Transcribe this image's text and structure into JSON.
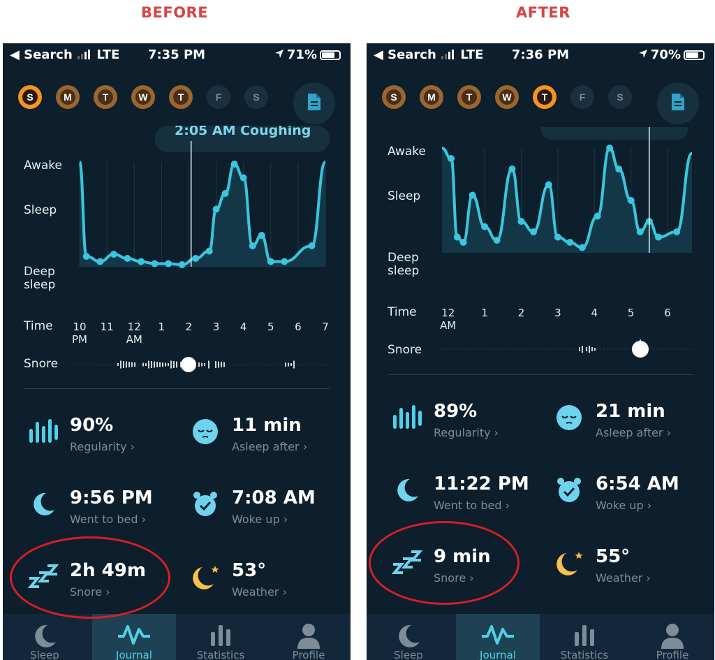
{
  "captions": {
    "before": "BEFORE",
    "after": "AFTER"
  },
  "colors": {
    "caption": "#d94343",
    "accent": "#4fd0e6",
    "orange": "#f7931e",
    "highlight_oval": "#d61e24"
  },
  "before": {
    "status": {
      "back": "◀ Search",
      "carrier": "LTE",
      "time": "7:35 PM",
      "battery": "71%"
    },
    "days": [
      {
        "letter": "S",
        "state": "selected"
      },
      {
        "letter": "M",
        "state": "done"
      },
      {
        "letter": "T",
        "state": "done"
      },
      {
        "letter": "W",
        "state": "done"
      },
      {
        "letter": "T",
        "state": "done"
      },
      {
        "letter": "F",
        "state": "empty"
      },
      {
        "letter": "S",
        "state": "empty"
      }
    ],
    "event_bubble": "2:05 AM Coughing",
    "chart_data": {
      "type": "line",
      "title": "",
      "y_levels": [
        "Awake",
        "Sleep",
        "Deep sleep"
      ],
      "x_ticks": [
        "10 PM",
        "11",
        "12 AM",
        "1",
        "2",
        "3",
        "4",
        "5",
        "6",
        "7"
      ],
      "time_label": "Time",
      "snore_label": "Snore",
      "series": [
        {
          "values": [
            {
              "t": "22:00",
              "y": 1.0
            },
            {
              "t": "22:15",
              "y": 0.1
            },
            {
              "t": "22:45",
              "y": 0.05
            },
            {
              "t": "23:15",
              "y": 0.12
            },
            {
              "t": "23:45",
              "y": 0.08
            },
            {
              "t": "00:15",
              "y": 0.05
            },
            {
              "t": "00:45",
              "y": 0.03
            },
            {
              "t": "01:15",
              "y": 0.03
            },
            {
              "t": "01:45",
              "y": 0.02
            },
            {
              "t": "02:15",
              "y": 0.08
            },
            {
              "t": "02:45",
              "y": 0.15
            },
            {
              "t": "03:00",
              "y": 0.55
            },
            {
              "t": "03:20",
              "y": 0.7
            },
            {
              "t": "03:40",
              "y": 0.98
            },
            {
              "t": "04:00",
              "y": 0.85
            },
            {
              "t": "04:20",
              "y": 0.2
            },
            {
              "t": "04:40",
              "y": 0.3
            },
            {
              "t": "05:00",
              "y": 0.05
            },
            {
              "t": "05:30",
              "y": 0.05
            },
            {
              "t": "06:30",
              "y": 0.2
            },
            {
              "t": "07:00",
              "y": 1.0
            }
          ]
        }
      ]
    },
    "stats": {
      "regularity": {
        "value": "90%",
        "label": "Regularity"
      },
      "asleep_after": {
        "value": "11 min",
        "label": "Asleep after"
      },
      "went_to_bed": {
        "value": "9:56 PM",
        "label": "Went to bed"
      },
      "woke_up": {
        "value": "7:08 AM",
        "label": "Woke up"
      },
      "snore": {
        "value": "2h 49m",
        "label": "Snore"
      },
      "weather": {
        "value": "53°",
        "label": "Weather"
      }
    }
  },
  "after": {
    "status": {
      "back": "◀ Search",
      "carrier": "LTE",
      "time": "7:36 PM",
      "battery": "70%"
    },
    "days": [
      {
        "letter": "S",
        "state": "done"
      },
      {
        "letter": "M",
        "state": "done"
      },
      {
        "letter": "T",
        "state": "done"
      },
      {
        "letter": "W",
        "state": "done"
      },
      {
        "letter": "T",
        "state": "selected"
      },
      {
        "letter": "F",
        "state": "empty"
      },
      {
        "letter": "S",
        "state": "empty"
      }
    ],
    "chart_data": {
      "type": "line",
      "title": "",
      "y_levels": [
        "Awake",
        "Sleep",
        "Deep sleep"
      ],
      "x_ticks": [
        "12 AM",
        "1",
        "2",
        "3",
        "4",
        "5",
        "6"
      ],
      "time_label": "Time",
      "snore_label": "Snore",
      "series": [
        {
          "values": [
            {
              "t": "23:50",
              "y": 1.0
            },
            {
              "t": "00:05",
              "y": 0.9
            },
            {
              "t": "00:15",
              "y": 0.15
            },
            {
              "t": "00:25",
              "y": 0.1
            },
            {
              "t": "00:40",
              "y": 0.55
            },
            {
              "t": "01:00",
              "y": 0.25
            },
            {
              "t": "01:20",
              "y": 0.12
            },
            {
              "t": "01:45",
              "y": 0.8
            },
            {
              "t": "02:00",
              "y": 0.3
            },
            {
              "t": "02:20",
              "y": 0.2
            },
            {
              "t": "02:45",
              "y": 0.65
            },
            {
              "t": "03:00",
              "y": 0.15
            },
            {
              "t": "03:20",
              "y": 0.1
            },
            {
              "t": "03:40",
              "y": 0.05
            },
            {
              "t": "04:05",
              "y": 0.35
            },
            {
              "t": "04:25",
              "y": 1.0
            },
            {
              "t": "04:40",
              "y": 0.8
            },
            {
              "t": "05:00",
              "y": 0.5
            },
            {
              "t": "05:15",
              "y": 0.2
            },
            {
              "t": "05:30",
              "y": 0.3
            },
            {
              "t": "05:45",
              "y": 0.15
            },
            {
              "t": "06:15",
              "y": 0.2
            },
            {
              "t": "06:40",
              "y": 0.95
            }
          ]
        }
      ]
    },
    "stats": {
      "regularity": {
        "value": "89%",
        "label": "Regularity"
      },
      "asleep_after": {
        "value": "21 min",
        "label": "Asleep after"
      },
      "went_to_bed": {
        "value": "11:22 PM",
        "label": "Went to bed"
      },
      "woke_up": {
        "value": "6:54 AM",
        "label": "Woke up"
      },
      "snore": {
        "value": "9 min",
        "label": "Snore"
      },
      "weather": {
        "value": "55°",
        "label": "Weather"
      }
    }
  },
  "tabs": [
    {
      "label": "Sleep",
      "icon": "moon-icon",
      "active": false
    },
    {
      "label": "Journal",
      "icon": "pulse-icon",
      "active": true
    },
    {
      "label": "Statistics",
      "icon": "bar-chart-icon",
      "active": false
    },
    {
      "label": "Profile",
      "icon": "person-icon",
      "active": false
    }
  ]
}
